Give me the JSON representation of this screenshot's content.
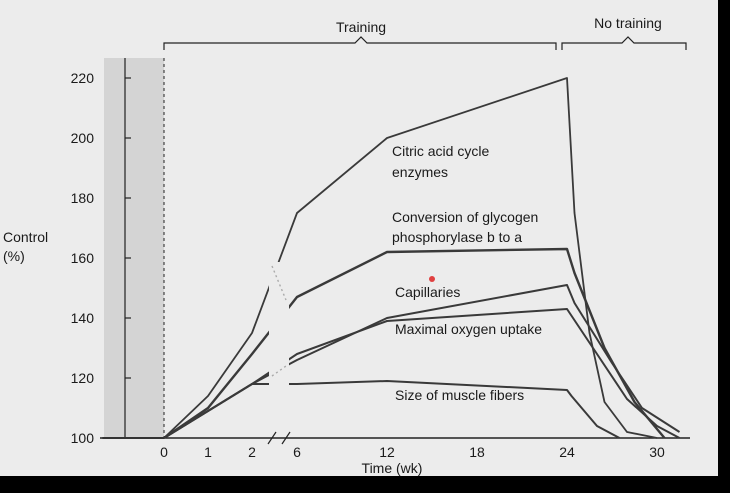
{
  "chart_data": {
    "type": "line",
    "title": "",
    "xlabel": "Time (wk)",
    "ylabel": "Control\n(%)",
    "ylabel_lines": [
      "Control",
      "(%)"
    ],
    "yticks": [
      100,
      120,
      140,
      160,
      180,
      200,
      220
    ],
    "xticks": [
      "0",
      "1",
      "2",
      "6",
      "12",
      "18",
      "24",
      "30"
    ],
    "ylim": [
      100,
      225
    ],
    "x_axis_break": "between 2 and 6",
    "brackets": [
      {
        "label": "Training"
      },
      {
        "label": "No training"
      }
    ],
    "series": [
      {
        "name": "Citric acid cycle enzymes",
        "label_lines": [
          "Citric acid cycle",
          "enzymes"
        ],
        "values": [
          [
            0,
            100
          ],
          [
            1,
            114
          ],
          [
            2,
            135
          ],
          [
            6,
            175
          ],
          [
            12,
            200
          ],
          [
            24,
            220
          ],
          [
            24.5,
            175
          ],
          [
            25.5,
            135
          ],
          [
            26.5,
            112
          ],
          [
            28,
            102
          ],
          [
            30,
            100
          ]
        ]
      },
      {
        "name": "Conversion of glycogen phosphorylase b to a",
        "label_lines": [
          "Conversion of glycogen",
          "phosphorylase b to a"
        ],
        "values": [
          [
            0,
            100
          ],
          [
            1,
            110
          ],
          [
            2,
            128
          ],
          [
            6,
            147
          ],
          [
            12,
            162
          ],
          [
            24,
            163
          ],
          [
            24.5,
            155
          ],
          [
            26.5,
            130
          ],
          [
            28.5,
            112
          ],
          [
            30.5,
            100
          ]
        ]
      },
      {
        "name": "Capillaries",
        "label_lines": [
          "Capillaries"
        ],
        "values": [
          [
            0,
            100
          ],
          [
            2,
            118
          ],
          [
            6,
            126
          ],
          [
            12,
            140
          ],
          [
            24,
            151
          ],
          [
            24.5,
            145
          ],
          [
            27,
            125
          ],
          [
            29,
            110
          ],
          [
            31.5,
            102
          ]
        ]
      },
      {
        "name": "Maximal oxygen uptake",
        "label_lines": [
          "Maximal oxygen uptake"
        ],
        "values": [
          [
            0,
            100
          ],
          [
            2,
            118
          ],
          [
            6,
            128
          ],
          [
            12,
            139
          ],
          [
            24,
            143
          ],
          [
            26,
            128
          ],
          [
            28,
            113
          ],
          [
            30,
            104
          ],
          [
            31.5,
            100
          ]
        ]
      },
      {
        "name": "Size of muscle fibers",
        "label_lines": [
          "Size of muscle fibers"
        ],
        "values": [
          [
            0,
            100
          ],
          [
            2,
            118
          ],
          [
            6,
            118
          ],
          [
            12,
            119
          ],
          [
            24,
            116
          ],
          [
            24.3,
            114
          ],
          [
            26,
            104
          ],
          [
            27.5,
            100
          ]
        ]
      }
    ]
  }
}
